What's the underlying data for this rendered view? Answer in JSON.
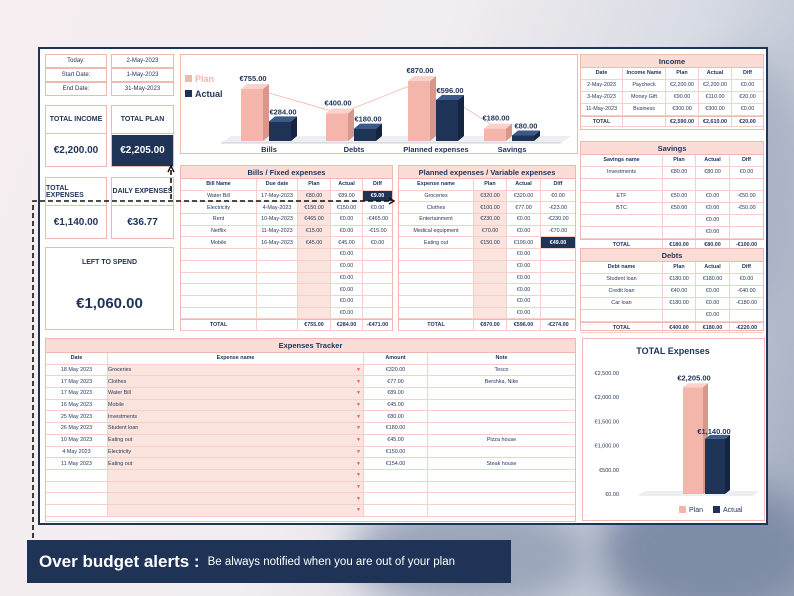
{
  "kpi": {
    "today_label": "Today:",
    "today": "2-May-2023",
    "start_label": "Start Date:",
    "start": "1-May-2023",
    "end_label": "End Date:",
    "end": "31-May-2023",
    "total_income_label": "TOTAL INCOME",
    "total_income": "€2,200.00",
    "total_plan_label": "TOTAL PLAN",
    "total_plan": "€2,205.00",
    "total_expenses_label": "TOTAL EXPENSES",
    "total_expenses": "€1,140.00",
    "daily_label": "DAILY EXPENSES",
    "daily": "€36.77",
    "left_label": "LEFT TO SPEND",
    "left": "€1,060.00"
  },
  "top_chart": {
    "legend_plan": "Plan",
    "legend_actual": "Actual",
    "categories": [
      "Bills",
      "Debts",
      "Planned expenses",
      "Savings"
    ],
    "plan": [
      755,
      400,
      870,
      180
    ],
    "actual": [
      284,
      180,
      596,
      80
    ],
    "plan_labels": [
      "€755.00",
      "€400.00",
      "€870.00",
      "€180.00"
    ],
    "actual_labels": [
      "€284.00",
      "€180.00",
      "€596.00",
      "€80.00"
    ]
  },
  "bills": {
    "title": "Bills / Fixed expenses",
    "headers": [
      "Bill Name",
      "Due date",
      "Plan",
      "Actual",
      "Diff"
    ],
    "rows": [
      [
        "Water Bill",
        "17-May-2023",
        "€80.00",
        "€89.00",
        "€9.00"
      ],
      [
        "Electricity",
        "4-May-2023",
        "€150.00",
        "€150.00",
        "€0.00"
      ],
      [
        "Rent",
        "10-May-2023",
        "€465.00",
        "€0.00",
        "-€465.00"
      ],
      [
        "Netflix",
        "11-May-2023",
        "€15.00",
        "€0.00",
        "-€15.00"
      ],
      [
        "Mobile",
        "16-May-2023",
        "€45.00",
        "€45.00",
        "€0.00"
      ],
      [
        "",
        "",
        "",
        "€0.00",
        ""
      ],
      [
        "",
        "",
        "",
        "€0.00",
        ""
      ],
      [
        "",
        "",
        "",
        "€0.00",
        ""
      ],
      [
        "",
        "",
        "",
        "€0.00",
        ""
      ],
      [
        "",
        "",
        "",
        "€0.00",
        ""
      ],
      [
        "",
        "",
        "",
        "€0.00",
        ""
      ]
    ],
    "total": [
      "TOTAL",
      "",
      "€755.00",
      "€284.00",
      "-€471.00"
    ]
  },
  "planned": {
    "title": "Planned expenses / Variable expenses",
    "headers": [
      "Expense name",
      "Plan",
      "Actual",
      "Diff"
    ],
    "rows": [
      [
        "Groceries",
        "€320.00",
        "€320.00",
        "€0.00"
      ],
      [
        "Clothes",
        "€100.00",
        "€77.00",
        "-€23.00"
      ],
      [
        "Entertainment",
        "€230.00",
        "€0.00",
        "-€230.00"
      ],
      [
        "Medical equipment",
        "€70.00",
        "€0.00",
        "-€70.00"
      ],
      [
        "Eating out",
        "€150.00",
        "€199.00",
        "€49.00"
      ],
      [
        "",
        "",
        "€0.00",
        ""
      ],
      [
        "",
        "",
        "€0.00",
        ""
      ],
      [
        "",
        "",
        "€0.00",
        ""
      ],
      [
        "",
        "",
        "€0.00",
        ""
      ],
      [
        "",
        "",
        "€0.00",
        ""
      ],
      [
        "",
        "",
        "€0.00",
        ""
      ]
    ],
    "total": [
      "TOTAL",
      "€870.00",
      "€596.00",
      "-€274.00"
    ]
  },
  "income": {
    "title": "Income",
    "headers": [
      "Date",
      "Income Name",
      "Plan",
      "Actual",
      "Diff"
    ],
    "rows": [
      [
        "2-May-2023",
        "Paycheck",
        "€2,200.00",
        "€2,200.00",
        "€0.00"
      ],
      [
        "3-May-2023",
        "Money Gift",
        "€90.00",
        "€110.00",
        "€20.00"
      ],
      [
        "11-May-2023",
        "Business",
        "€300.00",
        "€300.00",
        "€0.00"
      ]
    ],
    "total": [
      "TOTAL",
      "",
      "€2,590.00",
      "€2,610.00",
      "€20.00"
    ]
  },
  "savings": {
    "title": "Savings",
    "headers": [
      "Savings name",
      "Plan",
      "Actual",
      "Diff"
    ],
    "rows": [
      [
        "Investments",
        "€80.00",
        "€80.00",
        "€0.00"
      ],
      [
        "",
        "",
        "",
        ""
      ],
      [
        "ETF",
        "€50.00",
        "€0.00",
        "-€50.00"
      ],
      [
        "BTC",
        "€50.00",
        "€0.00",
        "-€50.00"
      ],
      [
        "",
        "",
        "€0.00",
        ""
      ],
      [
        "",
        "",
        "€0.00",
        ""
      ]
    ],
    "total": [
      "TOTAL",
      "€180.00",
      "€80.00",
      "-€100.00"
    ]
  },
  "debts": {
    "title": "Debts",
    "headers": [
      "Debt name",
      "Plan",
      "Actual",
      "Diff"
    ],
    "rows": [
      [
        "Student loan",
        "€180.00",
        "€180.00",
        "€0.00"
      ],
      [
        "Credit loan",
        "€40.00",
        "€0.00",
        "-€40.00"
      ],
      [
        "Car loan",
        "€180.00",
        "€0.00",
        "-€180.00"
      ],
      [
        "",
        "",
        "€0.00",
        ""
      ]
    ],
    "total": [
      "TOTAL",
      "€400.00",
      "€180.00",
      "-€220.00"
    ]
  },
  "tracker": {
    "title": "Expenses Tracker",
    "headers": [
      "Date",
      "Expense name",
      "Amount",
      "Note"
    ],
    "rows": [
      [
        "18 May 2023",
        "Groceries",
        "€320.00",
        "Tesco"
      ],
      [
        "17 May 2023",
        "Clothes",
        "€77.00",
        "Bershka, Nike"
      ],
      [
        "17 May 2023",
        "Water Bill",
        "€89.00",
        ""
      ],
      [
        "16 May 2023",
        "Mobile",
        "€45.00",
        ""
      ],
      [
        "25 May 2023",
        "Investments",
        "€80.00",
        ""
      ],
      [
        "26 May 2023",
        "Student loan",
        "€180.00",
        ""
      ],
      [
        "10 May 2023",
        "Eating out",
        "€45.00",
        "Pizza house"
      ],
      [
        "4 May 2023",
        "Electricity",
        "€150.00",
        ""
      ],
      [
        "11 May 2023",
        "Eating out",
        "€154.00",
        "Steak house"
      ],
      [
        "",
        "",
        "",
        ""
      ],
      [
        "",
        "",
        "",
        ""
      ],
      [
        "",
        "",
        "",
        ""
      ],
      [
        "",
        "",
        "",
        ""
      ]
    ]
  },
  "total_chart": {
    "title": "TOTAL Expenses",
    "yticks": [
      "€2,500.00",
      "€2,000.00",
      "€1,500.00",
      "€1,000.00",
      "€500.00",
      "€0.00"
    ],
    "plan": 2205,
    "actual": 1140,
    "plan_label": "€2,205.00",
    "actual_label": "€1,140.00",
    "legend_plan": "Plan",
    "legend_actual": "Actual"
  },
  "banner": {
    "title": "Over budget alerts :",
    "text": "Be always notified when you are out of your plan"
  },
  "colors": {
    "plan": "#f4b6ab",
    "actual": "#1f3357",
    "header": "#fbdcd6",
    "border": "#f0b8b0"
  }
}
